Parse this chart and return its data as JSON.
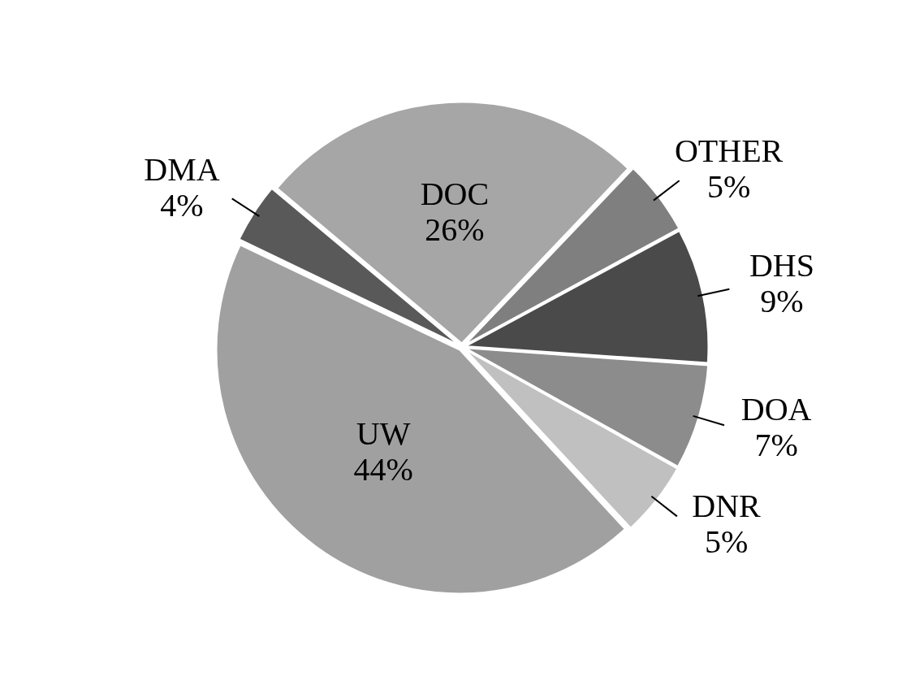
{
  "chart_data": {
    "type": "pie",
    "categories": [
      "DOC",
      "OTHER",
      "DHS",
      "DOA",
      "DNR",
      "UW",
      "DMA"
    ],
    "values": [
      26,
      5,
      9,
      7,
      5,
      44,
      4
    ],
    "value_labels": [
      "26%",
      "5%",
      "9%",
      "7%",
      "5%",
      "44%",
      "4%"
    ],
    "colors": [
      "#a6a6a6",
      "#7f7f7f",
      "#4a4a4a",
      "#8c8c8c",
      "#c0c0c0",
      "#a0a0a0",
      "#595959"
    ],
    "legend": false
  }
}
